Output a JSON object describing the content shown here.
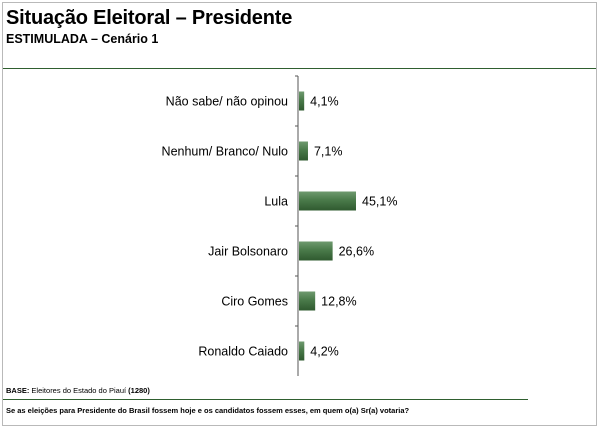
{
  "header": {
    "title": "Situação Eleitoral – Presidente",
    "subtitle": "ESTIMULADA – Cenário 1"
  },
  "footer": {
    "base_label": "BASE:",
    "base_text": " Eleitores do Estado do Piauí ",
    "base_count": "(1280)",
    "question": "Se as eleições para Presidente do Brasil fossem hoje e os candidatos fossem esses, em quem o(a) Sr(a) votaria?"
  },
  "colors": {
    "bar": "#4a7a4a",
    "bar_light": "#6f9a6f",
    "bar_dark": "#2f5a2f",
    "axis": "#555555",
    "rule": "#2f5f2f"
  },
  "chart_data": {
    "type": "bar",
    "orientation": "horizontal",
    "categories": [
      "Não sabe/ não opinou",
      "Nenhum/ Branco/ Nulo",
      "Lula",
      "Jair Bolsonaro",
      "Ciro Gomes",
      "Ronaldo Caiado"
    ],
    "values": [
      4.1,
      7.1,
      45.1,
      26.6,
      12.8,
      4.2
    ],
    "value_labels": [
      "4,1%",
      "7,1%",
      "45,1%",
      "26,6%",
      "12,8%",
      "4,2%"
    ],
    "unit": "%",
    "xlim": [
      0,
      100
    ],
    "grid": false,
    "legend": "none"
  }
}
